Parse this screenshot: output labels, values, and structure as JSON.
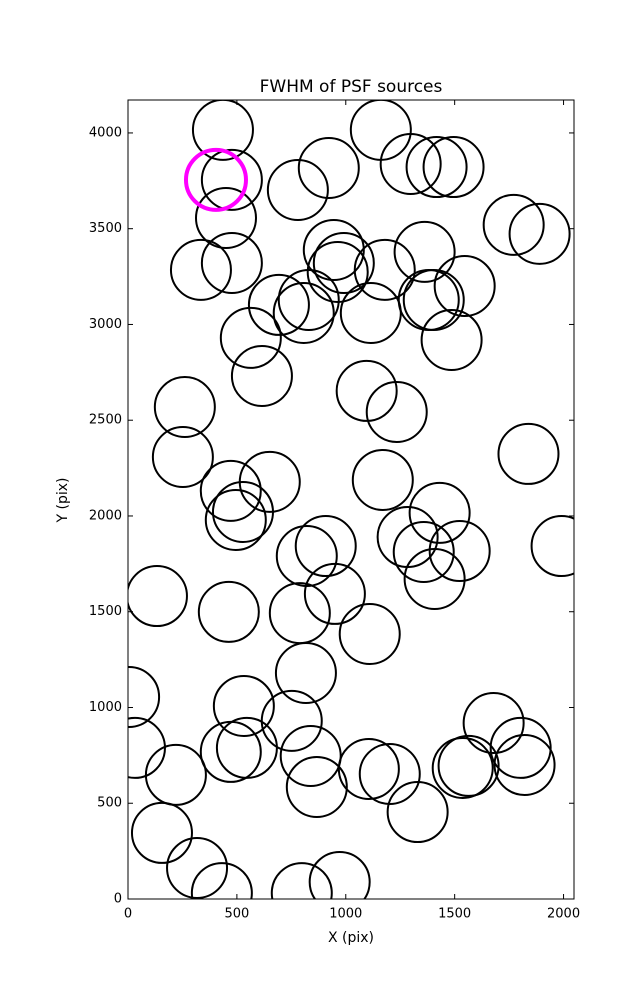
{
  "chart_data": {
    "type": "scatter",
    "title": "FWHM of PSF sources",
    "x_label": "X (pix)",
    "y_label": "Y (pix)",
    "xlim": [
      0,
      2048
    ],
    "ylim": [
      0,
      4172
    ],
    "xticks": [
      0,
      500,
      1000,
      1500,
      2000
    ],
    "yticks": [
      0,
      500,
      1000,
      1500,
      2000,
      2500,
      3000,
      3500,
      4000
    ],
    "series": [
      {
        "color": "#000000",
        "linewidth": 2,
        "x": [
          436,
          477,
          450,
          780,
          922,
          1161,
          1298,
          1417,
          1495,
          1771,
          1890,
          335,
          477,
          945,
          991,
          963,
          1179,
          1362,
          1404,
          1546,
          693,
          807,
          830,
          1115,
          1381,
          1486,
          564,
          615,
          1096,
          1234,
          261,
          252,
          1839,
          651,
          1170,
          472,
          528,
          495,
          908,
          821,
          1431,
          1284,
          1358,
          1523,
          1408,
          1991,
          133,
          950,
          463,
          789,
          1110,
          817,
          5,
          532,
          752,
          32,
          472,
          546,
          839,
          1679,
          1803,
          1821,
          220,
          1106,
          1202,
          1564,
          1537,
          867,
          1330,
          156,
          317,
          431,
          798,
          972
        ],
        "y": [
          4016,
          3755,
          3556,
          3702,
          3817,
          4016,
          3838,
          3822,
          3822,
          3520,
          3473,
          3285,
          3321,
          3389,
          3321,
          3274,
          3285,
          3379,
          3128,
          3201,
          3102,
          3060,
          3128,
          3060,
          3128,
          2919,
          2930,
          2731,
          2653,
          2543,
          2569,
          2308,
          2324,
          2178,
          2188,
          2131,
          2021,
          1979,
          1843,
          1791,
          2016,
          1890,
          1812,
          1817,
          1671,
          1843,
          1582,
          1593,
          1499,
          1493,
          1384,
          1180,
          1055,
          1008,
          930,
          789,
          768,
          789,
          747,
          919,
          789,
          700,
          648,
          679,
          653,
          695,
          684,
          585,
          454,
          345,
          162,
          31,
          31,
          89
        ]
      },
      {
        "color": "#ff00ff",
        "linewidth": 4,
        "x": [
          404
        ],
        "y": [
          3755
        ]
      }
    ]
  }
}
